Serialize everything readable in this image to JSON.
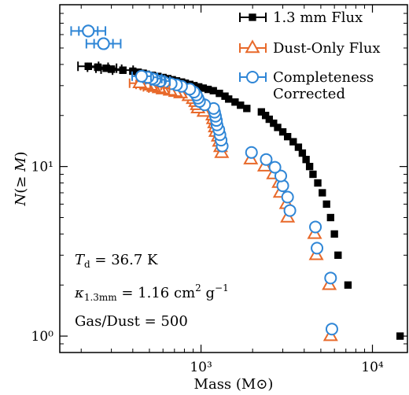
{
  "chart_data": {
    "type": "scatter",
    "xlabel": "Mass (M⊙)",
    "ylabel": "N(≥ M)",
    "xscale": "log",
    "yscale": "log",
    "xlim": [
      150,
      16000
    ],
    "ylim": [
      0.8,
      90
    ],
    "xticks": [
      {
        "value": 1000,
        "label": "10³"
      },
      {
        "value": 10000,
        "label": "10⁴"
      }
    ],
    "yticks": [
      {
        "value": 1,
        "label": "10⁰"
      },
      {
        "value": 10,
        "label": "10¹"
      }
    ],
    "legend_position": "top-right",
    "annotations": [
      "T_d = 36.7 K",
      "κ_1.3mm = 1.16 cm² g⁻¹",
      "Gas/Dust = 500"
    ],
    "series": [
      {
        "name": "1.3 mm Flux",
        "marker": "square",
        "color": "#000000",
        "x": [
          14500,
          7200,
          6300,
          6000,
          5700,
          5400,
          5100,
          4800,
          4500,
          4300,
          4100,
          3900,
          3700,
          3450,
          3200,
          3000,
          2800,
          2650,
          2500,
          2380,
          2250,
          1850,
          1700,
          1580,
          1450,
          1380,
          1280,
          1180,
          1100,
          1030,
          970,
          910,
          860,
          810,
          770,
          720,
          680,
          640,
          600,
          560,
          520,
          480,
          460,
          430,
          400,
          350,
          300,
          280,
          250,
          220
        ],
        "y": [
          1,
          2,
          3,
          4,
          5,
          6,
          7,
          8,
          9,
          10,
          11,
          12,
          13,
          14,
          15,
          16,
          17,
          18,
          19,
          20,
          21,
          22,
          23,
          24,
          25,
          26,
          27,
          28,
          28.5,
          29,
          29.5,
          30,
          30.5,
          31,
          31.5,
          32,
          32.5,
          33,
          33.5,
          34,
          34.5,
          35,
          35.5,
          36,
          36.5,
          37,
          37.5,
          38,
          38.5,
          39
        ]
      },
      {
        "name": "Dust-Only Flux",
        "marker": "triangle",
        "color": "#e8692a",
        "x": [
          5700,
          5600,
          4700,
          4600,
          3200,
          3150,
          2900,
          2850,
          2650,
          2350,
          1950,
          1320,
          1300,
          1280,
          1260,
          1220,
          1210,
          1200,
          1180,
          1170,
          1040,
          960,
          950,
          930,
          900,
          850,
          760,
          710,
          660,
          600,
          570,
          530,
          510,
          480,
          440
        ],
        "y": [
          1,
          2,
          3,
          4,
          5,
          6,
          7,
          8,
          9,
          10,
          11,
          12,
          13,
          14,
          15,
          16,
          17,
          18,
          19,
          20,
          21,
          22,
          23,
          24,
          25,
          26,
          27,
          27.5,
          28,
          28.5,
          29,
          29.5,
          30,
          30.5,
          31
        ]
      },
      {
        "name": "Completeness Corrected",
        "marker": "circle",
        "color": "#2f86d6",
        "x": [
          5800,
          5700,
          4750,
          4650,
          3300,
          3200,
          3000,
          2920,
          2700,
          2400,
          1970,
          1330,
          1310,
          1290,
          1270,
          1240,
          1230,
          1215,
          1200,
          1185,
          1050,
          980,
          960,
          940,
          910,
          860,
          770,
          720,
          670,
          610,
          580,
          540,
          520,
          490,
          450,
          270,
          220
        ],
        "y": [
          1.1,
          2.2,
          3.3,
          4.4,
          5.5,
          6.6,
          7.7,
          8.8,
          9.9,
          11,
          12.1,
          13.2,
          14.3,
          15.4,
          16.5,
          17.6,
          18.7,
          19.8,
          20.9,
          22,
          23.1,
          24.2,
          25.3,
          26.4,
          27.5,
          28.6,
          29.7,
          30.3,
          30.8,
          31.4,
          31.9,
          32.5,
          33,
          33.6,
          34.1,
          53,
          63
        ]
      }
    ]
  }
}
